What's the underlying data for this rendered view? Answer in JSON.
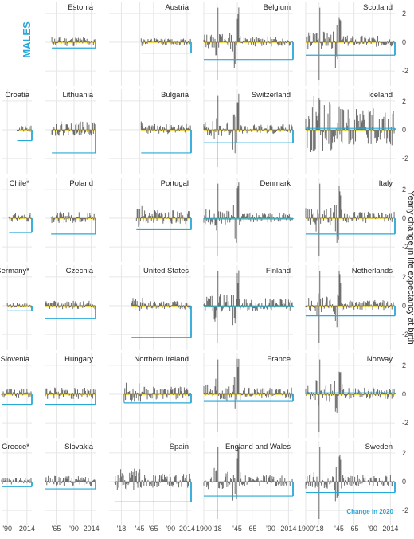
{
  "chart_data": {
    "type": "bar",
    "sex_label": "MALES",
    "ylabel": "Yearly change in life expectancy at birth",
    "ylim": [
      -2.6,
      2.6
    ],
    "y_ticks": [
      2,
      0,
      -2
    ],
    "y_tick_labels": [
      "2",
      "0",
      "-2"
    ],
    "x_tick_sets": {
      "col1": {
        "ticks": [
          1990,
          2014
        ],
        "labels": [
          "'90",
          "2014"
        ]
      },
      "col2": {
        "ticks": [
          1965,
          1990,
          2014
        ],
        "labels": [
          "'65",
          "'90",
          "2014"
        ]
      },
      "col3": {
        "ticks": [
          1918,
          1945,
          1965,
          1990,
          2014
        ],
        "labels": [
          "'18",
          "'45",
          "'65",
          "'90",
          "2014"
        ]
      },
      "col4": {
        "ticks": [
          1900,
          1918,
          1945,
          1965,
          1990,
          2014
        ],
        "labels": [
          "1900",
          "'18",
          "'45",
          "'65",
          "'90",
          "2014"
        ]
      },
      "col5": {
        "ticks": [
          1900,
          1918,
          1945,
          1965,
          1990,
          2014
        ],
        "labels": [
          "1900",
          "'18",
          "'45",
          "'65",
          "'90",
          "2014"
        ]
      }
    },
    "annotation": "Change in 2020",
    "colors": {
      "bars": "#6b6b6b",
      "zero_line": "#f0d020",
      "change_2020": "#29a8d8",
      "grid": "#e6e6e6",
      "panel_bg": "#ffffff"
    },
    "panels": [
      {
        "name": "Estonia",
        "start": 1959,
        "end": 2019,
        "change_2020": -0.4,
        "seed": 11,
        "amp": 0.35
      },
      {
        "name": "Austria",
        "start": 1947,
        "end": 2019,
        "change_2020": -0.75,
        "seed": 12,
        "amp": 0.25
      },
      {
        "name": "Belgium",
        "start": 1900,
        "end": 2019,
        "change_2020": -1.2,
        "seed": 13,
        "amp": 0.35,
        "wars": true
      },
      {
        "name": "Scotland",
        "start": 1900,
        "end": 2019,
        "change_2020": -0.9,
        "seed": 14,
        "amp": 0.4,
        "wars": true
      },
      {
        "name": "Croatia",
        "start": 2002,
        "end": 2019,
        "change_2020": -0.75,
        "seed": 21,
        "amp": 0.25
      },
      {
        "name": "Lithuania",
        "start": 1959,
        "end": 2019,
        "change_2020": -1.6,
        "seed": 22,
        "amp": 0.5
      },
      {
        "name": "Bulgaria",
        "start": 1947,
        "end": 2019,
        "change_2020": -1.6,
        "seed": 23,
        "amp": 0.35
      },
      {
        "name": "Switzerland",
        "start": 1900,
        "end": 2019,
        "change_2020": -0.9,
        "seed": 24,
        "amp": 0.35,
        "wars": true
      },
      {
        "name": "Iceland",
        "start": 1900,
        "end": 2019,
        "change_2020": 0.1,
        "seed": 25,
        "amp": 1.3
      },
      {
        "name": "Chile*",
        "start": 1992,
        "end": 2019,
        "change_2020": -1.0,
        "seed": 31,
        "amp": 0.3
      },
      {
        "name": "Poland",
        "start": 1958,
        "end": 2019,
        "change_2020": -1.1,
        "seed": 32,
        "amp": 0.4
      },
      {
        "name": "Portugal",
        "start": 1940,
        "end": 2019,
        "change_2020": -0.8,
        "seed": 33,
        "amp": 0.5
      },
      {
        "name": "Denmark",
        "start": 1900,
        "end": 2019,
        "change_2020": -0.05,
        "seed": 34,
        "amp": 0.35,
        "wars": true
      },
      {
        "name": "Italy",
        "start": 1900,
        "end": 2019,
        "change_2020": -1.1,
        "seed": 35,
        "amp": 0.4,
        "wars": true
      },
      {
        "name": "Germany*",
        "start": 1990,
        "end": 2019,
        "change_2020": -0.35,
        "seed": 41,
        "amp": 0.2
      },
      {
        "name": "Czechia",
        "start": 1950,
        "end": 2019,
        "change_2020": -0.9,
        "seed": 42,
        "amp": 0.3
      },
      {
        "name": "United States",
        "start": 1933,
        "end": 2019,
        "change_2020": -2.2,
        "seed": 43,
        "amp": 0.3
      },
      {
        "name": "Finland",
        "start": 1900,
        "end": 2019,
        "change_2020": -0.05,
        "seed": 44,
        "amp": 0.45,
        "wars": true
      },
      {
        "name": "Netherlands",
        "start": 1900,
        "end": 2019,
        "change_2020": -0.7,
        "seed": 45,
        "amp": 0.35,
        "wars": true
      },
      {
        "name": "Slovenia",
        "start": 1983,
        "end": 2019,
        "change_2020": -0.75,
        "seed": 51,
        "amp": 0.35
      },
      {
        "name": "Hungary",
        "start": 1950,
        "end": 2019,
        "change_2020": -0.75,
        "seed": 52,
        "amp": 0.4
      },
      {
        "name": "Northern Ireland",
        "start": 1922,
        "end": 2019,
        "change_2020": -0.6,
        "seed": 53,
        "amp": 0.45
      },
      {
        "name": "France",
        "start": 1900,
        "end": 2019,
        "change_2020": -0.5,
        "seed": 54,
        "amp": 0.4,
        "wars": true
      },
      {
        "name": "Norway",
        "start": 1900,
        "end": 2019,
        "change_2020": 0.1,
        "seed": 55,
        "amp": 0.4,
        "wars": true
      },
      {
        "name": "Greece*",
        "start": 1983,
        "end": 2019,
        "change_2020": -0.35,
        "seed": 61,
        "amp": 0.25
      },
      {
        "name": "Slovakia",
        "start": 1950,
        "end": 2019,
        "change_2020": -0.5,
        "seed": 62,
        "amp": 0.35
      },
      {
        "name": "Spain",
        "start": 1908,
        "end": 2019,
        "change_2020": -1.4,
        "seed": 63,
        "amp": 0.5
      },
      {
        "name": "England and Wales",
        "start": 1900,
        "end": 2019,
        "change_2020": -1.0,
        "seed": 64,
        "amp": 0.4,
        "wars": true
      },
      {
        "name": "Sweden",
        "start": 1900,
        "end": 2019,
        "change_2020": -0.75,
        "seed": 65,
        "amp": 0.4,
        "wars": true
      }
    ]
  }
}
